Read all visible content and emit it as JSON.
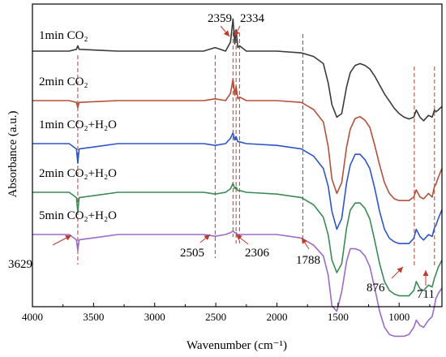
{
  "chart_data": {
    "type": "line",
    "xlabel": "Wavenumber (cm⁻¹)",
    "ylabel": "Absorbance (a.u.)",
    "xlim": [
      4000,
      650
    ],
    "x_ticks": [
      "4000",
      "3500",
      "3000",
      "2500",
      "2000",
      "1500",
      "1000"
    ],
    "x_tick_values": [
      4000,
      3500,
      3000,
      2500,
      2000,
      1500,
      1000
    ],
    "reference_wavenumbers": [
      3629,
      2505,
      2359,
      2334,
      2306,
      1788,
      876,
      711
    ],
    "peak_annotations": [
      {
        "label": "2359",
        "x": 2359,
        "series": "1min CO₂"
      },
      {
        "label": "2334",
        "x": 2334,
        "series": "1min CO₂"
      },
      {
        "label": "3629",
        "x": 3629,
        "series": "5min CO₂+H₂O"
      },
      {
        "label": "2505",
        "x": 2505,
        "series": "5min CO₂+H₂O"
      },
      {
        "label": "2306",
        "x": 2306,
        "series": "5min CO₂+H₂O"
      },
      {
        "label": "1788",
        "x": 1788,
        "series": "5min CO₂+H₂O"
      },
      {
        "label": "876",
        "x": 876,
        "series": "5min CO₂+H₂O"
      },
      {
        "label": "711",
        "x": 711,
        "series": "5min CO₂+H₂O"
      }
    ],
    "series": [
      {
        "name": "1min CO₂",
        "color": "#3a3a3a",
        "x": [
          4000,
          3700,
          3640,
          3629,
          3618,
          3300,
          3000,
          2600,
          2505,
          2420,
          2380,
          2359,
          2345,
          2334,
          2320,
          2306,
          2250,
          2000,
          1800,
          1700,
          1620,
          1580,
          1550,
          1510,
          1470,
          1430,
          1400,
          1360,
          1320,
          1280,
          1240,
          1200,
          1160,
          1120,
          1080,
          1040,
          1000,
          960,
          920,
          880,
          860,
          830,
          800,
          760,
          730,
          711,
          700,
          680,
          650
        ],
        "y": [
          0.0,
          0.0,
          0.01,
          0.03,
          0.01,
          0.0,
          0.0,
          0.0,
          0.02,
          0.0,
          0.05,
          0.18,
          0.04,
          0.12,
          0.02,
          0.03,
          0.0,
          0.0,
          -0.01,
          -0.03,
          -0.07,
          -0.18,
          -0.3,
          -0.37,
          -0.35,
          -0.2,
          -0.12,
          -0.08,
          -0.07,
          -0.08,
          -0.1,
          -0.14,
          -0.19,
          -0.24,
          -0.28,
          -0.32,
          -0.35,
          -0.37,
          -0.38,
          -0.37,
          -0.33,
          -0.37,
          -0.39,
          -0.36,
          -0.37,
          -0.33,
          -0.34,
          -0.33,
          -0.31
        ]
      },
      {
        "name": "2min CO₂",
        "color": "#b5503a",
        "x": [
          4000,
          3700,
          3640,
          3629,
          3618,
          3300,
          3000,
          2600,
          2505,
          2420,
          2380,
          2359,
          2345,
          2334,
          2320,
          2306,
          2250,
          2000,
          1800,
          1700,
          1620,
          1580,
          1550,
          1510,
          1470,
          1430,
          1400,
          1360,
          1320,
          1280,
          1240,
          1200,
          1160,
          1120,
          1080,
          1040,
          1000,
          960,
          920,
          880,
          860,
          830,
          800,
          760,
          730,
          711,
          700,
          680,
          650
        ],
        "y": [
          0.0,
          0.0,
          -0.01,
          -0.04,
          -0.01,
          0.0,
          0.0,
          0.0,
          0.01,
          0.0,
          0.04,
          0.12,
          0.03,
          0.08,
          0.01,
          0.02,
          0.0,
          0.0,
          -0.01,
          -0.05,
          -0.12,
          -0.26,
          -0.44,
          -0.52,
          -0.46,
          -0.26,
          -0.16,
          -0.1,
          -0.09,
          -0.11,
          -0.15,
          -0.25,
          -0.36,
          -0.46,
          -0.52,
          -0.55,
          -0.56,
          -0.56,
          -0.56,
          -0.54,
          -0.5,
          -0.54,
          -0.55,
          -0.52,
          -0.54,
          -0.48,
          -0.47,
          -0.43,
          -0.38
        ]
      },
      {
        "name": "1min CO₂+H₂O",
        "color": "#2d55c8",
        "x": [
          4000,
          3700,
          3640,
          3629,
          3618,
          3300,
          3000,
          2600,
          2505,
          2420,
          2380,
          2359,
          2345,
          2334,
          2320,
          2306,
          2250,
          2000,
          1800,
          1700,
          1620,
          1580,
          1550,
          1510,
          1470,
          1430,
          1400,
          1360,
          1320,
          1280,
          1240,
          1200,
          1160,
          1120,
          1080,
          1040,
          1000,
          960,
          920,
          880,
          860,
          830,
          800,
          760,
          730,
          711,
          700,
          680,
          650
        ],
        "y": [
          0.0,
          0.0,
          -0.03,
          -0.11,
          -0.03,
          0.0,
          0.0,
          0.0,
          -0.01,
          0.0,
          0.03,
          0.06,
          0.02,
          0.04,
          0.01,
          0.01,
          0.0,
          -0.01,
          -0.03,
          -0.07,
          -0.14,
          -0.24,
          -0.38,
          -0.48,
          -0.42,
          -0.22,
          -0.12,
          -0.06,
          -0.06,
          -0.09,
          -0.14,
          -0.25,
          -0.38,
          -0.48,
          -0.53,
          -0.55,
          -0.56,
          -0.56,
          -0.56,
          -0.53,
          -0.48,
          -0.52,
          -0.54,
          -0.51,
          -0.52,
          -0.47,
          -0.46,
          -0.42,
          -0.37
        ]
      },
      {
        "name": "2min CO₂+H₂O",
        "color": "#3b8a55",
        "x": [
          4000,
          3700,
          3640,
          3629,
          3618,
          3300,
          3000,
          2600,
          2505,
          2420,
          2380,
          2359,
          2345,
          2334,
          2320,
          2306,
          2250,
          2000,
          1800,
          1700,
          1620,
          1580,
          1550,
          1510,
          1470,
          1430,
          1400,
          1360,
          1320,
          1280,
          1240,
          1200,
          1160,
          1120,
          1080,
          1040,
          1000,
          960,
          920,
          880,
          860,
          830,
          800,
          760,
          730,
          711,
          700,
          680,
          650
        ],
        "y": [
          0.0,
          0.0,
          -0.03,
          -0.11,
          -0.03,
          0.0,
          0.0,
          0.0,
          -0.01,
          0.0,
          0.02,
          0.05,
          0.02,
          0.03,
          0.01,
          0.01,
          0.0,
          -0.01,
          -0.03,
          -0.07,
          -0.14,
          -0.24,
          -0.38,
          -0.45,
          -0.4,
          -0.2,
          -0.1,
          -0.06,
          -0.06,
          -0.09,
          -0.15,
          -0.27,
          -0.4,
          -0.5,
          -0.55,
          -0.57,
          -0.58,
          -0.58,
          -0.58,
          -0.55,
          -0.5,
          -0.54,
          -0.55,
          -0.52,
          -0.53,
          -0.48,
          -0.46,
          -0.42,
          -0.38
        ]
      },
      {
        "name": "5min CO₂+H₂O",
        "color": "#9b6bc8",
        "x": [
          4000,
          3700,
          3640,
          3629,
          3618,
          3300,
          3000,
          2600,
          2505,
          2420,
          2380,
          2359,
          2345,
          2334,
          2320,
          2306,
          2250,
          2000,
          1800,
          1700,
          1620,
          1580,
          1550,
          1510,
          1470,
          1430,
          1400,
          1360,
          1320,
          1280,
          1240,
          1200,
          1160,
          1120,
          1080,
          1040,
          1000,
          960,
          920,
          880,
          860,
          830,
          800,
          760,
          730,
          711,
          700,
          680,
          650
        ],
        "y": [
          0.0,
          0.0,
          -0.03,
          -0.09,
          -0.03,
          0.0,
          0.0,
          0.0,
          -0.01,
          0.0,
          0.01,
          0.02,
          0.01,
          0.01,
          0.0,
          0.0,
          0.0,
          0.0,
          -0.02,
          -0.06,
          -0.12,
          -0.23,
          -0.4,
          -0.43,
          -0.32,
          -0.15,
          -0.08,
          -0.08,
          -0.09,
          -0.12,
          -0.18,
          -0.3,
          -0.43,
          -0.52,
          -0.56,
          -0.57,
          -0.57,
          -0.57,
          -0.56,
          -0.52,
          -0.48,
          -0.51,
          -0.52,
          -0.48,
          -0.46,
          -0.4,
          -0.36,
          -0.33,
          -0.3
        ]
      }
    ]
  }
}
